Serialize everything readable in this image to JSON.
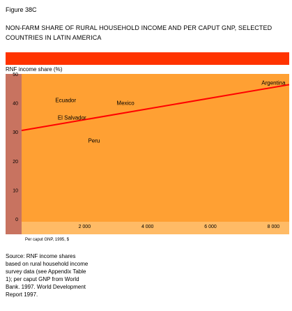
{
  "figure_label": "Figure 38C",
  "title": "NON-FARM SHARE OF RURAL HOUSEHOLD INCOME AND PER CAPUT GNP, SELECTED COUNTRIES IN LATIN AMERICA",
  "source_note": "Source: RNF income shares based on rural household income survey data (see Appendix Table 1); per caput GNP from World Bank. 1997. World Development Report 1997.",
  "colors": {
    "band": "#FF3300",
    "axis_panel": "#C87360",
    "plot_bg": "#FFA033",
    "trend_line": "#FF0000"
  },
  "chart_data": {
    "type": "scatter",
    "ylabel": "RNF income share (%)",
    "xlabel": "Per caput GNP, 1995, $",
    "xlim": [
      0,
      8500
    ],
    "ylim": [
      0,
      50
    ],
    "x_ticks": [
      2000,
      4000,
      6000,
      8000
    ],
    "x_tick_labels": [
      "2 000",
      "4 000",
      "6 000",
      "8 000"
    ],
    "y_ticks": [
      0,
      10,
      20,
      30,
      40,
      50
    ],
    "y_tick_labels": [
      "0",
      "10",
      "20",
      "30",
      "40",
      "50"
    ],
    "points": [
      {
        "label": "Ecuador",
        "x": 1400,
        "y": 41
      },
      {
        "label": "El Salvador",
        "x": 1600,
        "y": 35
      },
      {
        "label": "Peru",
        "x": 2300,
        "y": 27
      },
      {
        "label": "Mexico",
        "x": 3300,
        "y": 40
      },
      {
        "label": "Argentina",
        "x": 8000,
        "y": 47
      }
    ],
    "trend_line": {
      "x": [
        0,
        8500
      ],
      "y": [
        30.5,
        46.3
      ]
    }
  }
}
